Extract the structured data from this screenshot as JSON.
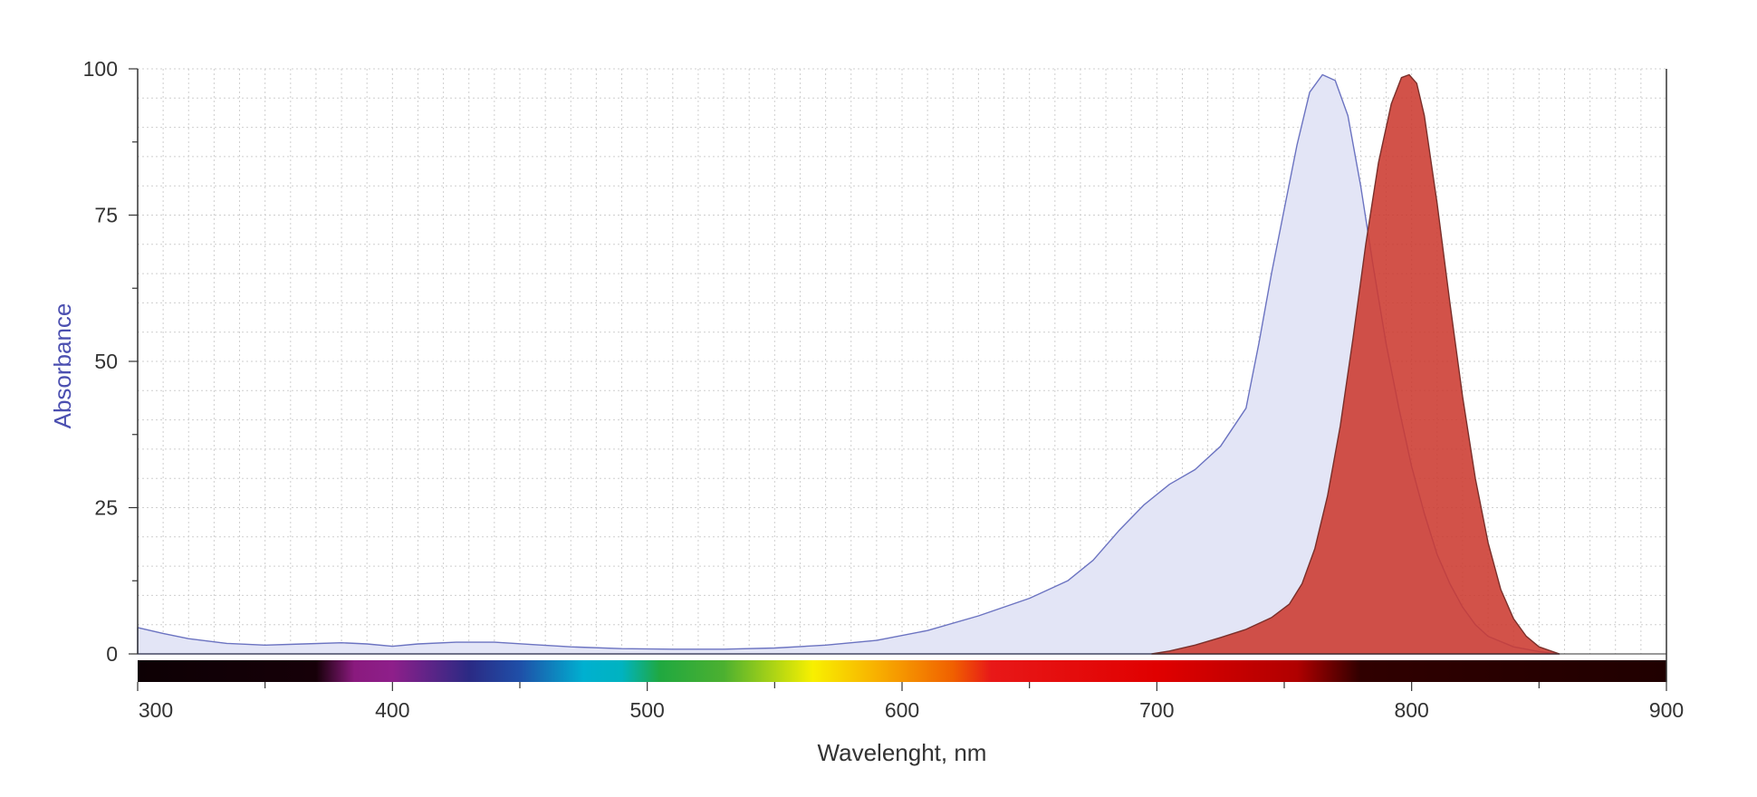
{
  "chart_data": {
    "type": "area",
    "title": "",
    "xlabel": "Wavelenght, nm",
    "ylabel": "Absorbance",
    "xlim": [
      300,
      900
    ],
    "ylim": [
      0,
      100
    ],
    "x_ticks": [
      "300",
      "400",
      "500",
      "600",
      "700",
      "800",
      "900"
    ],
    "y_ticks": [
      "0",
      "25",
      "50",
      "75",
      "100"
    ],
    "grid": true,
    "legend": "none",
    "colors": {
      "absorbance_line": "#6b73c1",
      "absorbance_fill": "#e3e5f6",
      "emission_line": "#7a2f2a",
      "emission_fill": "#cc3a30",
      "ylabel": "#4b4fb0",
      "axis": "#333333",
      "grid": "#cfcfcf"
    },
    "spectrum_bar": {
      "stops": [
        {
          "nm": 300,
          "color": "#0d0004"
        },
        {
          "nm": 370,
          "color": "#160008"
        },
        {
          "nm": 385,
          "color": "#8a1a7e"
        },
        {
          "nm": 400,
          "color": "#8e1f8a"
        },
        {
          "nm": 430,
          "color": "#2b2a84"
        },
        {
          "nm": 450,
          "color": "#1f4fa8"
        },
        {
          "nm": 475,
          "color": "#00b0d0"
        },
        {
          "nm": 490,
          "color": "#00b3c0"
        },
        {
          "nm": 505,
          "color": "#20a840"
        },
        {
          "nm": 530,
          "color": "#4cb030"
        },
        {
          "nm": 565,
          "color": "#f8f000"
        },
        {
          "nm": 590,
          "color": "#f8b000"
        },
        {
          "nm": 620,
          "color": "#f06000"
        },
        {
          "nm": 635,
          "color": "#e81818"
        },
        {
          "nm": 700,
          "color": "#e00000"
        },
        {
          "nm": 755,
          "color": "#b00000"
        },
        {
          "nm": 780,
          "color": "#300000"
        },
        {
          "nm": 900,
          "color": "#200000"
        }
      ]
    },
    "series": [
      {
        "style": "absorbance",
        "x": [
          300,
          310,
          320,
          335,
          350,
          365,
          380,
          390,
          400,
          410,
          425,
          440,
          455,
          470,
          490,
          510,
          530,
          550,
          570,
          590,
          610,
          630,
          650,
          665,
          675,
          685,
          695,
          705,
          715,
          725,
          735,
          740,
          745,
          750,
          755,
          760,
          765,
          770,
          775,
          780,
          785,
          790,
          795,
          800,
          805,
          810,
          815,
          820,
          825,
          830,
          840,
          850,
          858
        ],
        "values": [
          4.5,
          3.5,
          2.6,
          1.8,
          1.5,
          1.7,
          1.9,
          1.7,
          1.3,
          1.7,
          2.0,
          2.0,
          1.6,
          1.2,
          0.9,
          0.8,
          0.8,
          1.0,
          1.5,
          2.3,
          4.0,
          6.5,
          9.5,
          12.5,
          16.0,
          21.0,
          25.5,
          29.0,
          31.5,
          35.5,
          42.0,
          53.0,
          65.0,
          76.0,
          87.0,
          96.0,
          99.0,
          98.0,
          92.0,
          80.0,
          66.0,
          53.0,
          42.0,
          32.0,
          24.0,
          17.0,
          12.0,
          8.0,
          5.0,
          3.0,
          1.2,
          0.4,
          0.0
        ]
      },
      {
        "style": "emission",
        "x": [
          698,
          705,
          715,
          725,
          735,
          745,
          752,
          757,
          762,
          767,
          772,
          777,
          782,
          787,
          792,
          796,
          799,
          802,
          805,
          810,
          815,
          820,
          825,
          830,
          835,
          840,
          845,
          850,
          858
        ],
        "values": [
          0.0,
          0.5,
          1.5,
          2.8,
          4.2,
          6.2,
          8.5,
          12.0,
          18.0,
          27.0,
          39.0,
          54.0,
          70.0,
          84.0,
          94.0,
          98.5,
          99.0,
          97.5,
          92.0,
          77.0,
          60.0,
          44.0,
          30.0,
          19.0,
          11.0,
          6.0,
          3.0,
          1.2,
          0.0
        ]
      }
    ]
  }
}
